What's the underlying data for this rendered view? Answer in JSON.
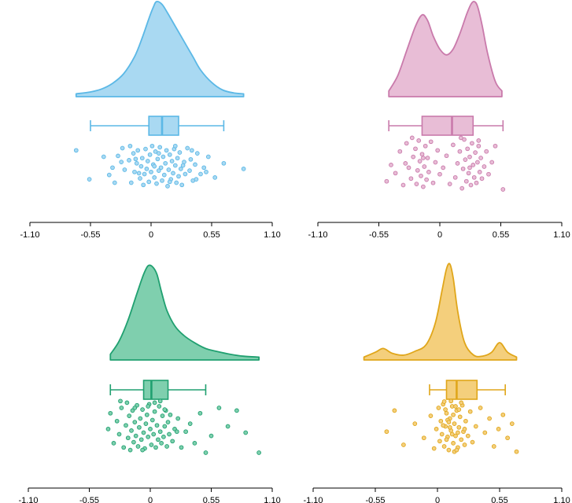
{
  "chart_data": [
    {
      "type": "raincloud",
      "title": "",
      "xlabel": "",
      "ylabel": "",
      "xlim": [
        -1.1,
        1.1
      ],
      "xticks": [
        -1.1,
        -0.55,
        0,
        0.55,
        1.1
      ],
      "tick_labels": [
        "-1.10",
        "-0.55",
        "0",
        "0.55",
        "1.10"
      ],
      "color": "#5bb8e6",
      "fill": "#a9d9f2",
      "density": {
        "x": [
          -0.68,
          -0.55,
          -0.45,
          -0.35,
          -0.25,
          -0.15,
          -0.08,
          -0.02,
          0.02,
          0.05,
          0.1,
          0.15,
          0.22,
          0.3,
          0.38,
          0.45,
          0.55,
          0.65,
          0.75,
          0.84
        ],
        "y": [
          0.03,
          0.05,
          0.08,
          0.14,
          0.24,
          0.42,
          0.62,
          0.82,
          0.94,
          1.0,
          0.97,
          0.88,
          0.74,
          0.58,
          0.42,
          0.28,
          0.15,
          0.07,
          0.04,
          0.03
        ]
      },
      "box": {
        "whisker_low": -0.55,
        "q1": -0.02,
        "median": 0.1,
        "q3": 0.25,
        "whisker_high": 0.66
      },
      "points": {
        "x": [
          -0.68,
          -0.56,
          -0.43,
          -0.38,
          -0.35,
          -0.3,
          -0.26,
          -0.24,
          -0.2,
          -0.18,
          -0.16,
          -0.15,
          -0.13,
          -0.12,
          -0.1,
          -0.09,
          -0.08,
          -0.07,
          -0.06,
          -0.05,
          -0.04,
          -0.03,
          -0.02,
          -0.01,
          0,
          0.01,
          0.02,
          0.03,
          0.04,
          0.05,
          0.06,
          0.07,
          0.08,
          0.09,
          0.1,
          0.11,
          0.12,
          0.13,
          0.14,
          0.15,
          0.16,
          0.17,
          0.18,
          0.19,
          0.2,
          0.21,
          0.22,
          0.23,
          0.24,
          0.25,
          0.26,
          0.27,
          0.28,
          0.3,
          0.31,
          0.33,
          0.35,
          0.36,
          0.38,
          0.4,
          0.42,
          0.45,
          0.48,
          0.52,
          0.58,
          0.66,
          0.84,
          -0.27,
          -0.19,
          -0.11,
          0.07,
          0.17,
          0.29,
          0.37,
          0.5,
          -0.33,
          -0.14,
          0.03,
          0.22,
          0.41
        ],
        "y": [
          0.15,
          0.82,
          0.3,
          0.72,
          0.55,
          0.28,
          0.1,
          0.6,
          0.38,
          0.9,
          0.22,
          0.65,
          0.45,
          0.15,
          0.8,
          0.52,
          0.33,
          0.95,
          0.7,
          0.12,
          0.58,
          0.4,
          0.88,
          0.25,
          0.65,
          0.05,
          0.48,
          0.78,
          0.18,
          0.92,
          0.35,
          0.62,
          0.08,
          0.55,
          0.85,
          0.3,
          0.72,
          0.45,
          0.15,
          0.98,
          0.6,
          0.25,
          0.82,
          0.4,
          0.68,
          0.12,
          0.5,
          0.9,
          0.33,
          0.75,
          0.2,
          0.58,
          0.95,
          0.42,
          0.7,
          0.1,
          0.62,
          0.36,
          0.85,
          0.48,
          0.22,
          0.7,
          0.55,
          0.3,
          0.78,
          0.45,
          0.58,
          0.42,
          0.05,
          0.68,
          0.22,
          0.88,
          0.5,
          0.15,
          0.65,
          0.9,
          0.35,
          0.52,
          0.05,
          0.82
        ]
      }
    },
    {
      "type": "raincloud",
      "title": "",
      "xlabel": "",
      "ylabel": "",
      "xlim": [
        -1.1,
        1.1
      ],
      "xticks": [
        -1.1,
        -0.55,
        0,
        0.55,
        1.1
      ],
      "tick_labels": [
        "-1.10",
        "-0.55",
        "0",
        "0.55",
        "1.10"
      ],
      "color": "#c97aab",
      "fill": "#e8bdd6",
      "density": {
        "x": [
          -0.46,
          -0.38,
          -0.3,
          -0.22,
          -0.16,
          -0.11,
          -0.06,
          0,
          0.06,
          0.12,
          0.18,
          0.24,
          0.28,
          0.31,
          0.34,
          0.38,
          0.43,
          0.5,
          0.56
        ],
        "y": [
          0.06,
          0.22,
          0.48,
          0.74,
          0.86,
          0.8,
          0.64,
          0.5,
          0.44,
          0.5,
          0.66,
          0.86,
          0.97,
          1.0,
          0.95,
          0.76,
          0.46,
          0.16,
          0.06
        ]
      },
      "box": {
        "whisker_low": -0.46,
        "q1": -0.16,
        "median": 0.11,
        "q3": 0.3,
        "whisker_high": 0.57
      },
      "points": {
        "x": [
          -0.48,
          -0.44,
          -0.4,
          -0.36,
          -0.33,
          -0.3,
          -0.28,
          -0.26,
          -0.24,
          -0.22,
          -0.21,
          -0.2,
          -0.19,
          -0.18,
          -0.17,
          -0.16,
          -0.15,
          -0.14,
          -0.13,
          -0.12,
          -0.11,
          -0.1,
          -0.08,
          -0.06,
          -0.04,
          -0.02,
          0,
          0.03,
          0.06,
          0.09,
          0.12,
          0.14,
          0.16,
          0.18,
          0.2,
          0.21,
          0.22,
          0.23,
          0.24,
          0.25,
          0.26,
          0.27,
          0.28,
          0.29,
          0.3,
          0.31,
          0.32,
          0.33,
          0.34,
          0.35,
          0.36,
          0.37,
          0.38,
          0.4,
          0.42,
          0.44,
          0.47,
          0.5,
          0.57,
          -0.25,
          -0.15,
          0.19,
          0.27,
          0.35,
          -0.31
        ],
        "y": [
          0.85,
          0.55,
          0.7,
          0.3,
          0.92,
          0.15,
          0.6,
          0.8,
          0.4,
          0.25,
          0.9,
          0.65,
          0.1,
          0.48,
          0.75,
          0.35,
          0.95,
          0.58,
          0.2,
          0.82,
          0.42,
          0.68,
          0.12,
          0.88,
          0.5,
          0.28,
          0.72,
          0.6,
          0.38,
          0.9,
          0.18,
          0.78,
          0.52,
          0.3,
          0.98,
          0.62,
          0.08,
          0.45,
          0.85,
          0.25,
          0.7,
          0.4,
          0.92,
          0.15,
          0.55,
          0.78,
          0.32,
          0.88,
          0.5,
          0.2,
          0.68,
          0.42,
          0.8,
          0.58,
          0.3,
          0.72,
          0.5,
          0.2,
          1.0,
          0.05,
          0.42,
          0.05,
          0.6,
          0.1,
          0.52
        ]
      }
    },
    {
      "type": "raincloud",
      "title": "",
      "xlabel": "",
      "ylabel": "",
      "xlim": [
        -1.1,
        1.1
      ],
      "xticks": [
        -1.1,
        -0.55,
        0,
        0.55,
        1.1
      ],
      "tick_labels": [
        "-1.10",
        "-0.55",
        "0",
        "0.55",
        "1.10"
      ],
      "color": "#20a070",
      "fill": "#7fcfae",
      "density": {
        "x": [
          -0.36,
          -0.28,
          -0.2,
          -0.12,
          -0.06,
          -0.02,
          0.02,
          0.06,
          0.1,
          0.15,
          0.22,
          0.3,
          0.4,
          0.5,
          0.6,
          0.72,
          0.84,
          0.98
        ],
        "y": [
          0.06,
          0.2,
          0.42,
          0.7,
          0.9,
          0.99,
          0.98,
          0.9,
          0.72,
          0.52,
          0.36,
          0.26,
          0.18,
          0.12,
          0.09,
          0.06,
          0.04,
          0.03
        ]
      },
      "box": {
        "whisker_low": -0.36,
        "q1": -0.06,
        "median": 0.01,
        "q3": 0.16,
        "whisker_high": 0.5
      },
      "points": {
        "x": [
          -0.38,
          -0.36,
          -0.33,
          -0.3,
          -0.28,
          -0.26,
          -0.24,
          -0.22,
          -0.2,
          -0.19,
          -0.18,
          -0.17,
          -0.16,
          -0.15,
          -0.14,
          -0.13,
          -0.12,
          -0.11,
          -0.1,
          -0.09,
          -0.08,
          -0.07,
          -0.06,
          -0.05,
          -0.04,
          -0.03,
          -0.02,
          -0.01,
          0,
          0.01,
          0.02,
          0.03,
          0.04,
          0.05,
          0.06,
          0.07,
          0.08,
          0.09,
          0.1,
          0.11,
          0.12,
          0.13,
          0.14,
          0.15,
          0.16,
          0.17,
          0.18,
          0.2,
          0.22,
          0.25,
          0.28,
          0.32,
          0.36,
          0.4,
          0.45,
          0.5,
          0.55,
          0.62,
          0.7,
          0.78,
          0.86,
          0.98,
          -0.21,
          -0.14,
          -0.02,
          0.04,
          0.13,
          0.24,
          -0.27,
          -0.07,
          0.09
        ],
        "y": [
          0.55,
          0.25,
          0.82,
          0.4,
          0.65,
          0.15,
          0.9,
          0.48,
          0.72,
          0.3,
          0.95,
          0.58,
          0.2,
          0.8,
          0.42,
          0.68,
          0.1,
          0.88,
          0.52,
          0.35,
          0.75,
          0.18,
          0.62,
          0.92,
          0.45,
          0.28,
          0.7,
          0.08,
          0.55,
          0.85,
          0.38,
          0.65,
          0.22,
          0.9,
          0.48,
          0.75,
          0.12,
          0.6,
          0.82,
          0.3,
          0.7,
          0.5,
          0.2,
          0.88,
          0.42,
          0.65,
          0.28,
          0.78,
          0.55,
          0.35,
          0.9,
          0.6,
          0.45,
          0.82,
          0.25,
          1.0,
          0.68,
          0.15,
          0.5,
          0.2,
          0.62,
          1.0,
          0.05,
          0.15,
          0.12,
          0.05,
          0.18,
          0.6,
          0.02,
          0.95,
          0.02
        ]
      }
    },
    {
      "type": "raincloud",
      "title": "",
      "xlabel": "",
      "ylabel": "",
      "xlim": [
        -1.1,
        1.1
      ],
      "xticks": [
        -1.1,
        -0.55,
        0,
        0.55,
        1.1
      ],
      "tick_labels": [
        "-1.10",
        "-0.55",
        "0",
        "0.55",
        "1.10"
      ],
      "color": "#e0a61a",
      "fill": "#f4cf7c",
      "density": {
        "x": [
          -0.65,
          -0.55,
          -0.48,
          -0.4,
          -0.3,
          -0.2,
          -0.1,
          -0.02,
          0.04,
          0.08,
          0.11,
          0.14,
          0.18,
          0.24,
          0.32,
          0.4,
          0.48,
          0.55,
          0.62,
          0.7
        ],
        "y": [
          0.03,
          0.08,
          0.12,
          0.07,
          0.05,
          0.09,
          0.16,
          0.38,
          0.72,
          0.95,
          1.0,
          0.85,
          0.5,
          0.18,
          0.05,
          0.04,
          0.08,
          0.18,
          0.08,
          0.03
        ]
      },
      "box": {
        "whisker_low": -0.07,
        "q1": 0.08,
        "median": 0.17,
        "q3": 0.35,
        "whisker_high": 0.6
      },
      "points": {
        "x": [
          -0.45,
          -0.38,
          -0.3,
          -0.2,
          -0.12,
          -0.06,
          -0.03,
          -0.01,
          0.01,
          0.02,
          0.03,
          0.04,
          0.05,
          0.06,
          0.07,
          0.08,
          0.09,
          0.1,
          0.11,
          0.12,
          0.13,
          0.14,
          0.15,
          0.16,
          0.17,
          0.18,
          0.19,
          0.2,
          0.21,
          0.22,
          0.23,
          0.24,
          0.25,
          0.27,
          0.29,
          0.31,
          0.34,
          0.38,
          0.42,
          0.46,
          0.5,
          0.54,
          0.58,
          0.62,
          0.66,
          0.7,
          0.06,
          0.09,
          0.12,
          0.15,
          0.18,
          0.21,
          0.11,
          0.14,
          0.08,
          0.05,
          0.19,
          0.24,
          0.17,
          0.13,
          0.07,
          0.1,
          0.16
        ],
        "y": [
          0.6,
          0.2,
          0.85,
          0.45,
          0.72,
          0.3,
          0.92,
          0.55,
          0.15,
          0.78,
          0.4,
          0.65,
          0.08,
          0.88,
          0.5,
          0.25,
          0.7,
          0.95,
          0.35,
          0.58,
          0.12,
          0.82,
          0.45,
          0.68,
          0.2,
          0.9,
          0.52,
          0.32,
          0.75,
          0.1,
          0.6,
          0.85,
          0.4,
          0.68,
          0.22,
          0.8,
          0.5,
          0.15,
          0.62,
          0.35,
          0.88,
          0.55,
          0.28,
          0.72,
          0.45,
          0.98,
          0.03,
          0.38,
          0.02,
          0.98,
          0.62,
          0.05,
          0.52,
          0.28,
          0.75,
          0.48,
          0.18,
          0.55,
          0.95,
          0.65,
          0.18,
          0.42,
          0.12
        ]
      }
    }
  ]
}
